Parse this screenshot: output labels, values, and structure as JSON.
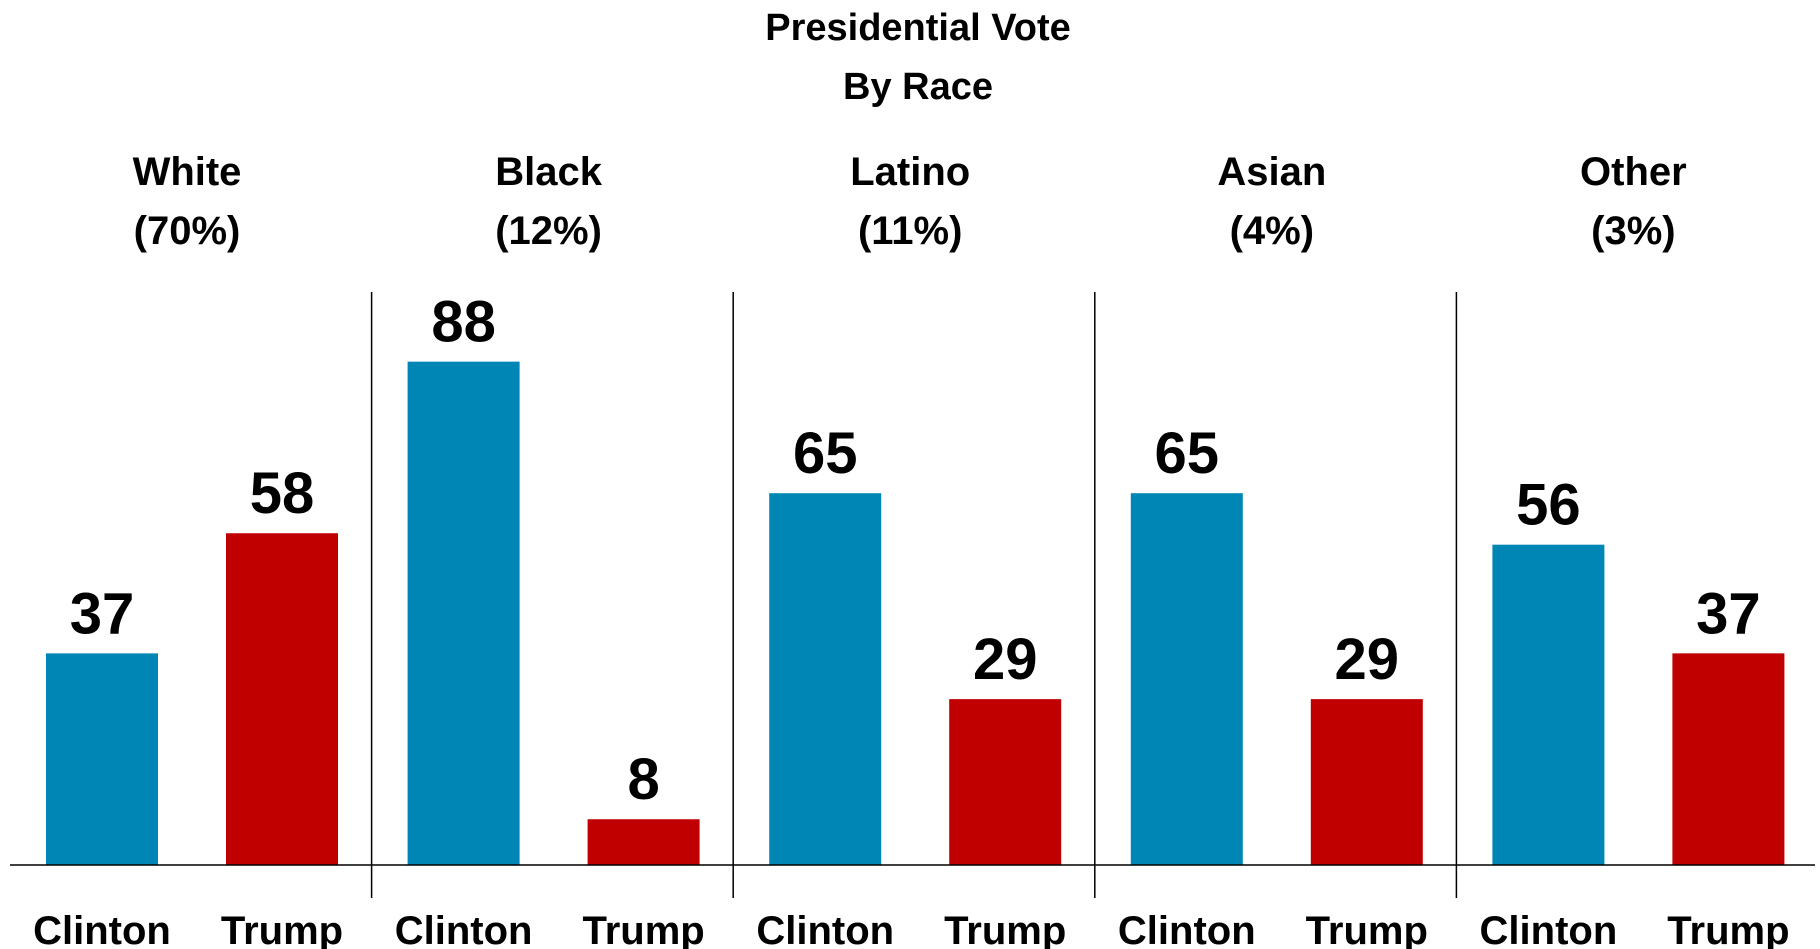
{
  "chart_data": {
    "type": "bar",
    "title": "Presidential Vote",
    "subtitle": "By Race",
    "candidates": [
      "Clinton",
      "Trump"
    ],
    "colors": {
      "Clinton": "#0086b5",
      "Trump": "#c00000"
    },
    "groups": [
      {
        "name": "White",
        "share": "(70%)",
        "values": [
          37,
          58
        ]
      },
      {
        "name": "Black",
        "share": "(12%)",
        "values": [
          88,
          8
        ]
      },
      {
        "name": "Latino",
        "share": "(11%)",
        "values": [
          65,
          29
        ]
      },
      {
        "name": "Asian",
        "share": "(4%)",
        "values": [
          65,
          29
        ]
      },
      {
        "name": "Other",
        "share": "(3%)",
        "values": [
          56,
          37
        ]
      }
    ],
    "ylim": [
      0,
      100
    ],
    "grid": false,
    "legend": "none",
    "data_labels": true
  }
}
